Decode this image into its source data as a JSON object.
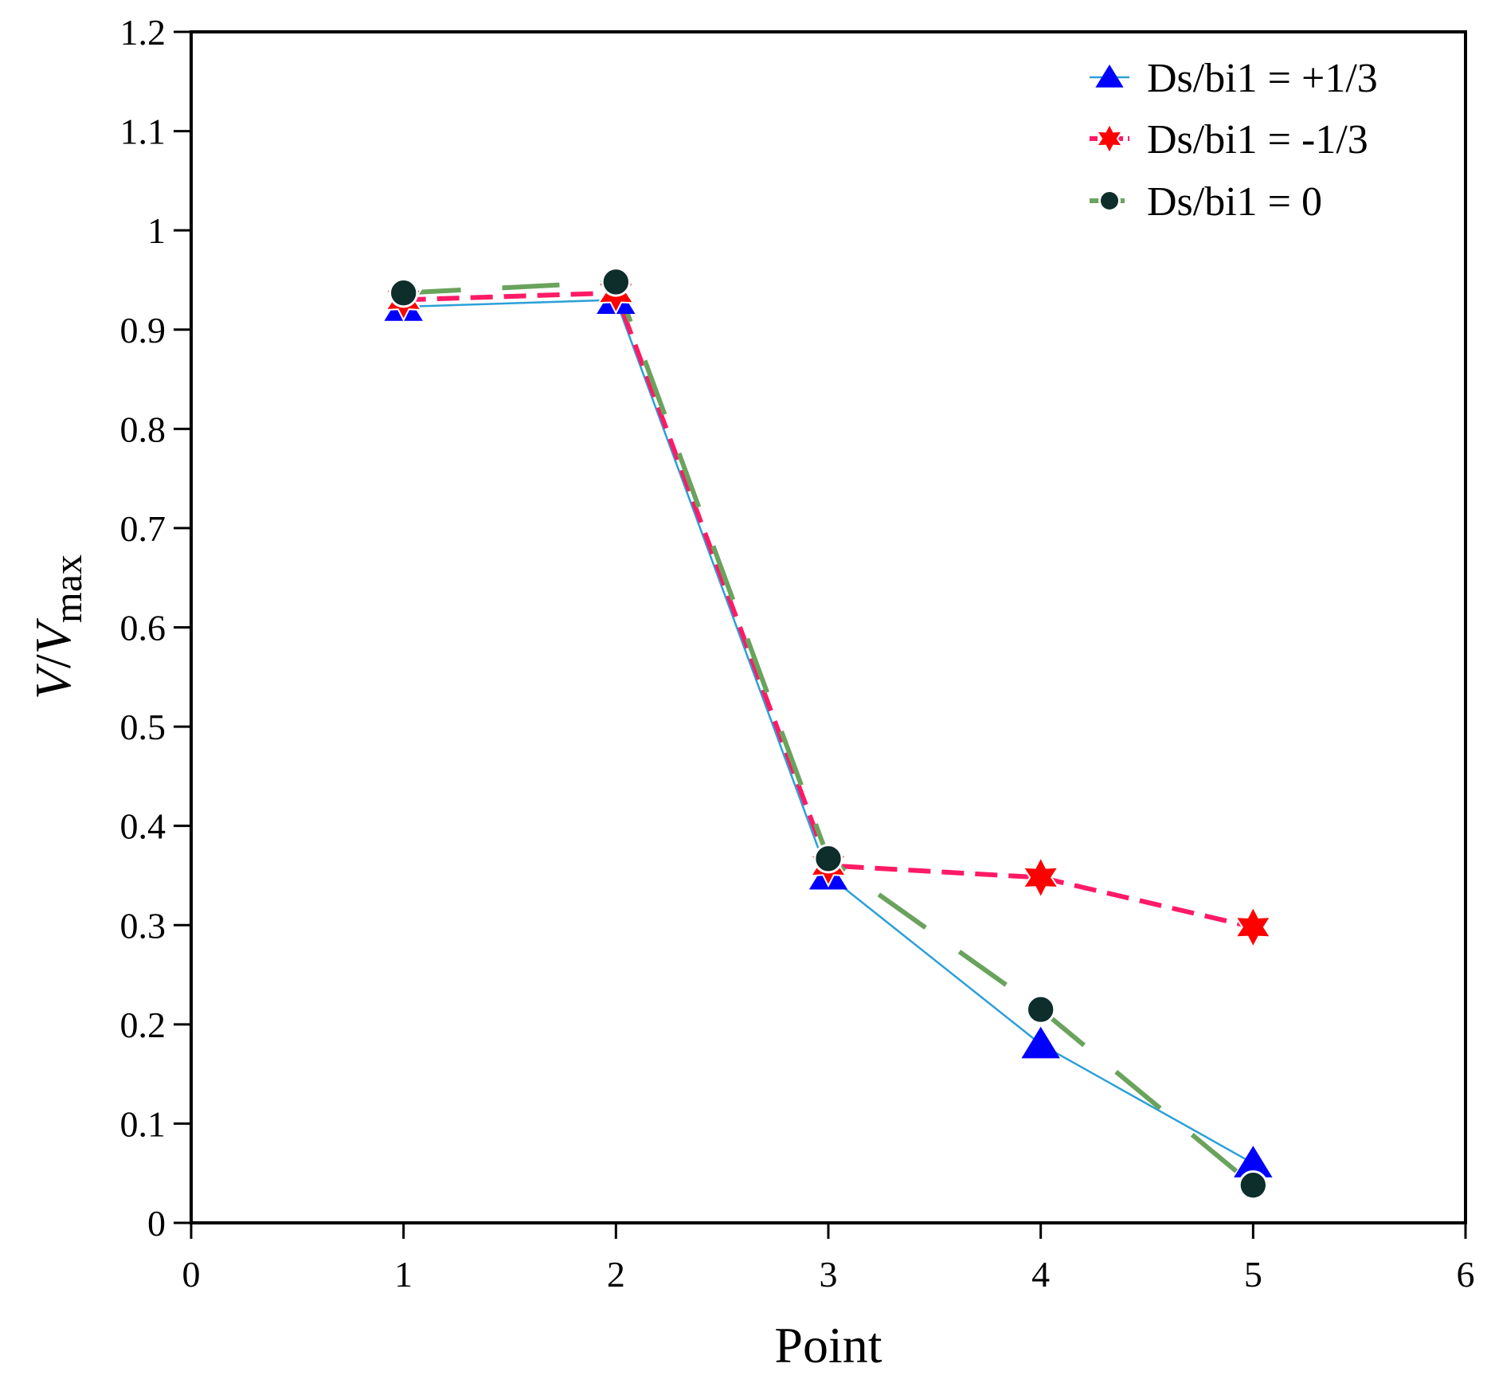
{
  "chart_data": {
    "type": "line",
    "title": "",
    "xlabel": "Point",
    "ylabel": {
      "v1": "V",
      "slash": "/",
      "v2": "V",
      "sub": "max"
    },
    "xlim": [
      0,
      6
    ],
    "ylim": [
      0,
      1.2
    ],
    "x_ticks": [
      "0",
      "1",
      "2",
      "3",
      "4",
      "5",
      "6"
    ],
    "y_ticks": [
      "0",
      "0.1",
      "0.2",
      "0.3",
      "0.4",
      "0.5",
      "0.6",
      "0.7",
      "0.8",
      "0.9",
      "1",
      "1.1",
      "1.2"
    ],
    "grid": false,
    "legend_position": "top-right",
    "x": [
      1,
      2,
      3,
      4,
      5
    ],
    "series": [
      {
        "name": "Ds/bi1 = +1/3",
        "values": [
          0.923,
          0.93,
          0.35,
          0.18,
          0.06
        ],
        "marker": "triangle",
        "marker_color": "#0000ff",
        "line_color": "#2aa0d8",
        "line_style": "solid-thin"
      },
      {
        "name": "Ds/bi1 = -1/3",
        "values": [
          0.93,
          0.937,
          0.36,
          0.348,
          0.298
        ],
        "marker": "star",
        "marker_color": "#ff0000",
        "line_color": "#ff1a66",
        "line_style": "dashed"
      },
      {
        "name": "Ds/bi1 = 0",
        "values": [
          0.937,
          0.948,
          0.367,
          0.215,
          0.038
        ],
        "marker": "circle",
        "marker_color": "#0d2e2a",
        "line_color": "#6aa35c",
        "line_style": "long-dashed"
      }
    ]
  }
}
